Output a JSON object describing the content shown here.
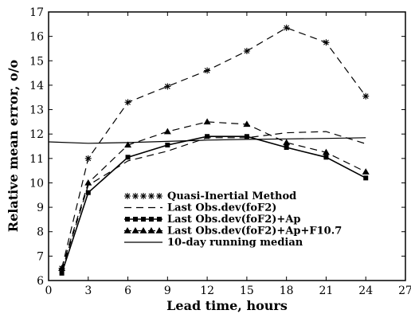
{
  "chart_data": {
    "type": "line",
    "xlabel": "Lead time, hours",
    "ylabel": "Relative mean error, o/o",
    "xlim": [
      0,
      27
    ],
    "ylim": [
      6,
      17
    ],
    "xticks": [
      0,
      3,
      6,
      9,
      12,
      15,
      18,
      21,
      24,
      27
    ],
    "yticks": [
      6,
      7,
      8,
      9,
      10,
      11,
      12,
      13,
      14,
      15,
      16,
      17
    ],
    "grid": false,
    "legend_position": "lower-center",
    "series": [
      {
        "name": "Quasi-Inertial Method",
        "style": "dashed",
        "marker": "asterisk",
        "x": [
          1,
          3,
          6,
          9,
          12,
          15,
          18,
          21,
          24
        ],
        "y": [
          6.5,
          11.0,
          13.3,
          13.95,
          14.6,
          15.4,
          16.35,
          15.75,
          13.55
        ]
      },
      {
        "name": "Last Obs.dev(foF2)",
        "style": "dashed",
        "marker": "none",
        "x": [
          1,
          3,
          6,
          9,
          12,
          15,
          18,
          21,
          24
        ],
        "y": [
          6.4,
          9.9,
          10.9,
          11.3,
          11.85,
          11.85,
          12.05,
          12.1,
          11.6
        ]
      },
      {
        "name": "Last Obs.dev(foF2)+Ap",
        "style": "solid",
        "marker": "square",
        "x": [
          1,
          3,
          6,
          9,
          12,
          15,
          18,
          21,
          24
        ],
        "y": [
          6.3,
          9.6,
          11.05,
          11.55,
          11.9,
          11.9,
          11.45,
          11.05,
          10.2
        ]
      },
      {
        "name": "Last Obs.dev(foF2)+Ap+F10.7",
        "style": "dashed",
        "marker": "triangle",
        "x": [
          1,
          3,
          6,
          9,
          12,
          15,
          18,
          21,
          24
        ],
        "y": [
          6.5,
          10.0,
          11.55,
          12.1,
          12.5,
          12.4,
          11.65,
          11.25,
          10.45
        ]
      },
      {
        "name": "10-day running median",
        "style": "solid",
        "marker": "none",
        "x": [
          0,
          3,
          6,
          9,
          12,
          15,
          18,
          21,
          24
        ],
        "y": [
          11.68,
          11.62,
          11.65,
          11.7,
          11.75,
          11.78,
          11.8,
          11.82,
          11.85
        ]
      }
    ]
  }
}
